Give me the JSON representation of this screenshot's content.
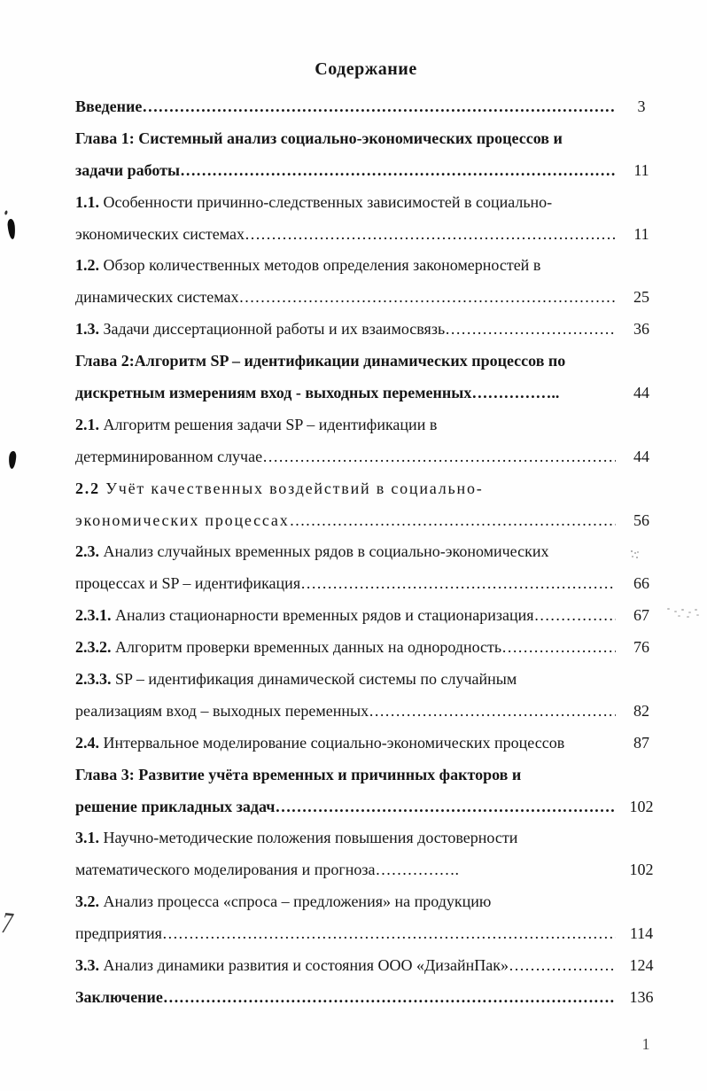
{
  "page": {
    "title": "Содержание",
    "footer_page_number": "1"
  },
  "artifacts": {
    "handwritten_mark": "7"
  },
  "leader_dots": "………………………………………………………………………………………………………………………………………………………………………………………………",
  "toc": {
    "rows": [
      {
        "b": "Введение",
        "t": "",
        "lead": "fill",
        "page": "3",
        "bold_row": true
      },
      {
        "b": "Глава 1: Системный анализ социально-экономических процессов и",
        "t": "",
        "lead": "none",
        "page": "",
        "bold_row": true
      },
      {
        "b": "задачи работы",
        "t": "",
        "lead": "fill",
        "page": "11",
        "bold_row": true
      },
      {
        "b": "1.1.",
        "t": " Особенности причинно-следственных зависимостей в социально-",
        "lead": "none",
        "page": ""
      },
      {
        "b": "",
        "t": "экономических системах",
        "lead": "fill",
        "page": "11"
      },
      {
        "b": "1.2.",
        "t": " Обзор количественных методов определения закономерностей в",
        "lead": "none",
        "page": ""
      },
      {
        "b": "",
        "t": "динамических системах",
        "lead": "fill",
        "page": "25"
      },
      {
        "b": "1.3.",
        "t": " Задачи диссертационной работы и их взаимосвязь",
        "lead": "fill",
        "page": "36"
      },
      {
        "b": "Глава 2:Алгоритм SP – идентификации динамических процессов по",
        "t": "",
        "lead": "none",
        "page": "",
        "bold_row": true
      },
      {
        "b": "дискретным измерениям вход - выходных переменных……………..",
        "t": "",
        "lead": "blank",
        "page": "44",
        "bold_row": true
      },
      {
        "b": "2.1.",
        "t": " Алгоритм решения задачи SP – идентификации в",
        "lead": "none",
        "page": ""
      },
      {
        "b": "",
        "t": "детерминированном случае",
        "lead": "fill",
        "page": "44"
      },
      {
        "b": "2.2",
        "t": " Учёт качественных воздействий в социально-",
        "lead": "none",
        "page": "",
        "ls": true
      },
      {
        "b": "",
        "t": "экономических процессах",
        "lead": "fill",
        "page": "56",
        "ls": true
      },
      {
        "b": "2.3.",
        "t": " Анализ случайных временных рядов в социально-экономических",
        "lead": "none",
        "page": ""
      },
      {
        "b": "",
        "t": "процессах и SP – идентификация",
        "lead": "fill",
        "page": "66"
      },
      {
        "b": "2.3.1.",
        "t": " Анализ стационарности временных рядов и стационаризация",
        "lead": "fill",
        "page": "67"
      },
      {
        "b": "2.3.2.",
        "t": " Алгоритм проверки временных данных на однородность",
        "lead": "fill",
        "page": "76"
      },
      {
        "b": "2.3.3.",
        "t": " SP – идентификация динамической системы по случайным",
        "lead": "none",
        "page": ""
      },
      {
        "b": "",
        "t": "реализациям вход – выходных переменных",
        "lead": "fill",
        "page": "82"
      },
      {
        "b": "2.4.",
        "t": " Интервальное моделирование социально-экономических процессов",
        "lead": "blank",
        "page": "87"
      },
      {
        "b": "Глава 3: Развитие учёта временных и причинных факторов и",
        "t": "",
        "lead": "none",
        "page": "",
        "bold_row": true
      },
      {
        "b": "решение прикладных задач",
        "t": "",
        "lead": "fill",
        "page": "102",
        "bold_row": true
      },
      {
        "b": "3.1.",
        "t": " Научно-методические положения повышения достоверности",
        "lead": "none",
        "page": ""
      },
      {
        "b": "",
        "t": "математического моделирования и прогноза…………….",
        "lead": "blank",
        "page": "102"
      },
      {
        "b": "3.2.",
        "t": " Анализ процесса «спроса – предложения» на продукцию",
        "lead": "none",
        "page": ""
      },
      {
        "b": "",
        "t": "предприятия",
        "lead": "fill",
        "page": "114"
      },
      {
        "b": "3.3.",
        "t": " Анализ динамики развития и состояния ООО «ДизайнПак»",
        "lead": "fill",
        "page": "124"
      },
      {
        "b": "Заключение",
        "t": "",
        "lead": "fill",
        "page": "136",
        "bold_row": true
      }
    ]
  }
}
